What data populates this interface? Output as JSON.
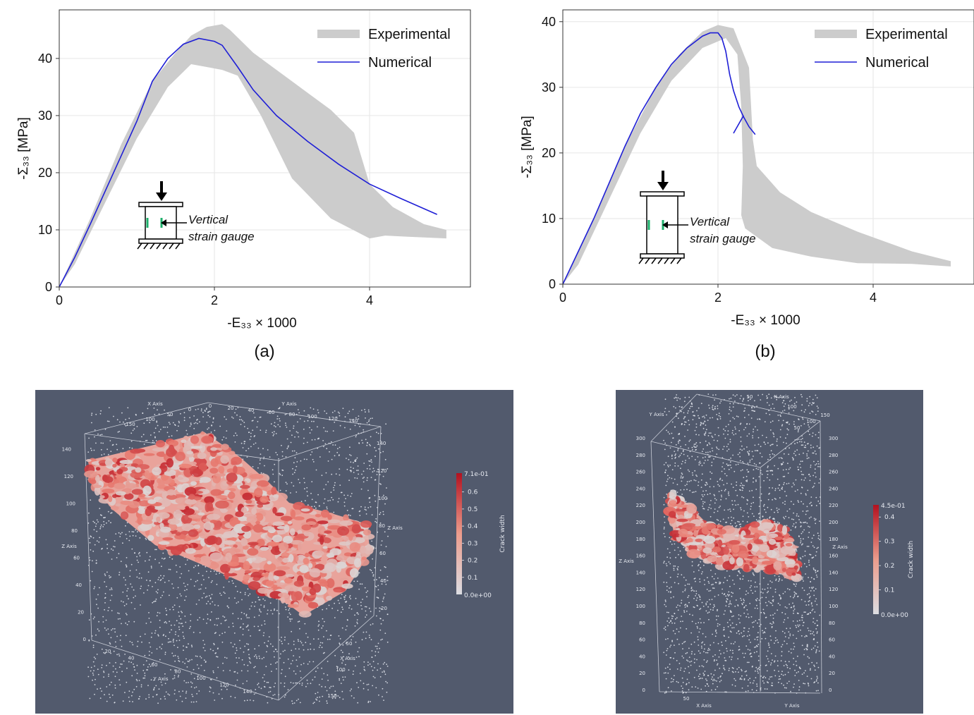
{
  "chart_data": [
    {
      "type": "line",
      "id": "a",
      "caption": "(a)",
      "xlabel": "-E₃₃ × 1000",
      "ylabel": "-Σ₃₃ [MPa]",
      "xlim": [
        0,
        5.3
      ],
      "ylim": [
        0,
        48.5
      ],
      "xticks": [
        0,
        2,
        4
      ],
      "yticks": [
        0,
        10,
        20,
        30,
        40
      ],
      "grid": true,
      "legend_position": "top-right",
      "inset_label": [
        "Vertical",
        "strain gauge"
      ],
      "series": [
        {
          "name": "Experimental",
          "kind": "band",
          "color": "#cccccc",
          "upper": [
            [
              0,
              0
            ],
            [
              0.4,
              12
            ],
            [
              0.8,
              25
            ],
            [
              1.2,
              36
            ],
            [
              1.5,
              41
            ],
            [
              1.7,
              44
            ],
            [
              1.9,
              45.5
            ],
            [
              2.1,
              46
            ],
            [
              2.2,
              45
            ],
            [
              2.5,
              41
            ],
            [
              3.0,
              36
            ],
            [
              3.5,
              31
            ],
            [
              3.8,
              27
            ],
            [
              4.0,
              18
            ],
            [
              4.3,
              14
            ],
            [
              4.7,
              11
            ],
            [
              4.99,
              10
            ]
          ],
          "lower": [
            [
              4.99,
              8.5
            ],
            [
              4.5,
              8.8
            ],
            [
              4.2,
              9
            ],
            [
              4.0,
              8.5
            ],
            [
              3.5,
              12
            ],
            [
              3.0,
              19
            ],
            [
              2.6,
              30
            ],
            [
              2.3,
              37
            ],
            [
              2.1,
              38
            ],
            [
              1.9,
              38.5
            ],
            [
              1.7,
              39
            ],
            [
              1.4,
              35
            ],
            [
              1.0,
              26
            ],
            [
              0.6,
              15
            ],
            [
              0.2,
              4
            ],
            [
              0,
              0
            ]
          ]
        },
        {
          "name": "Numerical",
          "kind": "line",
          "color": "#1f1fd6",
          "points": [
            [
              0,
              0
            ],
            [
              0.2,
              5.2
            ],
            [
              0.4,
              11
            ],
            [
              0.6,
              17
            ],
            [
              0.8,
              23
            ],
            [
              1.0,
              29
            ],
            [
              1.2,
              36
            ],
            [
              1.4,
              40
            ],
            [
              1.6,
              42.5
            ],
            [
              1.8,
              43.5
            ],
            [
              2.0,
              43
            ],
            [
              2.1,
              42.3
            ],
            [
              2.3,
              38.5
            ],
            [
              2.5,
              34.5
            ],
            [
              2.8,
              30
            ],
            [
              3.2,
              25.5
            ],
            [
              3.6,
              21.5
            ],
            [
              4.0,
              18
            ],
            [
              4.4,
              15.5
            ],
            [
              4.87,
              12.7
            ]
          ]
        }
      ]
    },
    {
      "type": "line",
      "id": "b",
      "caption": "(b)",
      "xlabel": "-E₃₃ × 1000",
      "ylabel": "-Σ₃₃ [MPa]",
      "xlim": [
        0,
        5.3
      ],
      "ylim": [
        0,
        41.8
      ],
      "xticks": [
        0,
        2,
        4
      ],
      "yticks": [
        0,
        10,
        20,
        30,
        40
      ],
      "grid": true,
      "legend_position": "top-right",
      "inset_label": [
        "Vertical",
        "strain gauge"
      ],
      "series": [
        {
          "name": "Experimental",
          "kind": "band",
          "color": "#cccccc",
          "upper": [
            [
              0,
              0
            ],
            [
              0.4,
              10
            ],
            [
              0.8,
              21
            ],
            [
              1.2,
              30
            ],
            [
              1.5,
              35
            ],
            [
              1.8,
              38.5
            ],
            [
              2.0,
              39.5
            ],
            [
              2.2,
              39
            ],
            [
              2.3,
              36
            ],
            [
              2.4,
              33
            ],
            [
              2.45,
              22
            ],
            [
              2.5,
              18
            ],
            [
              2.8,
              14
            ],
            [
              3.2,
              11
            ],
            [
              3.8,
              8
            ],
            [
              4.5,
              5
            ],
            [
              5.0,
              3.5
            ]
          ],
          "lower": [
            [
              5.0,
              2.7
            ],
            [
              4.5,
              3.1
            ],
            [
              3.8,
              3.2
            ],
            [
              3.2,
              4.2
            ],
            [
              2.7,
              5.5
            ],
            [
              2.35,
              8.5
            ],
            [
              2.3,
              10.5
            ],
            [
              2.32,
              18
            ],
            [
              2.3,
              27
            ],
            [
              2.25,
              35
            ],
            [
              2.1,
              37.5
            ],
            [
              1.8,
              36
            ],
            [
              1.4,
              31
            ],
            [
              1.0,
              23
            ],
            [
              0.6,
              13
            ],
            [
              0.2,
              3
            ],
            [
              0,
              0
            ]
          ]
        },
        {
          "name": "Numerical",
          "kind": "line",
          "color": "#1f1fd6",
          "points": [
            [
              0,
              0
            ],
            [
              0.2,
              5
            ],
            [
              0.4,
              10
            ],
            [
              0.6,
              15.5
            ],
            [
              0.8,
              21
            ],
            [
              1.0,
              26
            ],
            [
              1.2,
              30
            ],
            [
              1.4,
              33.5
            ],
            [
              1.6,
              36
            ],
            [
              1.8,
              37.8
            ],
            [
              1.9,
              38.3
            ],
            [
              2.0,
              38.3
            ],
            [
              2.05,
              37.5
            ],
            [
              2.1,
              35.5
            ],
            [
              2.15,
              32
            ],
            [
              2.2,
              29.5
            ],
            [
              2.27,
              27
            ],
            [
              2.33,
              25.5
            ],
            [
              2.4,
              24
            ],
            [
              2.48,
              22.8
            ]
          ]
        },
        {
          "name": "",
          "kind": "line",
          "color": "#1f1fd6",
          "points": [
            [
              2.2,
              23
            ],
            [
              2.33,
              25.7
            ]
          ]
        }
      ]
    }
  ],
  "render_a": {
    "background": "#525a6d",
    "x_axis_label": "X Axis",
    "y_axis_label": "Y Axis",
    "z_axis_label": "Z Axis",
    "top_x_ticks": [
      "150",
      "100",
      "50",
      "0"
    ],
    "top_y_ticks": [
      "0",
      "20",
      "40",
      "60",
      "80",
      "100",
      "120",
      "140"
    ],
    "left_z_ticks": [
      "0",
      "20",
      "40",
      "60",
      "80",
      "100",
      "120",
      "140"
    ],
    "right_z_ticks": [
      "20",
      "40",
      "60",
      "80",
      "100",
      "120",
      "140"
    ],
    "bottom_y_ticks": [
      "20",
      "40",
      "60",
      "80",
      "100",
      "120",
      "140"
    ],
    "bottom_x_ticks": [
      "50",
      "100",
      "150"
    ],
    "colorbar": {
      "title": "Crack width",
      "max_label": "7.1e-01",
      "min_label": "0.0e+00",
      "ticks": [
        "0.6",
        "0.5",
        "0.4",
        "0.3",
        "0.2",
        "0.1"
      ]
    }
  },
  "render_b": {
    "background": "#525a6d",
    "x_axis_label": "X Axis",
    "y_axis_label": "Y Axis",
    "z_axis_label": "Z Axis",
    "top_x_ticks": [
      "50",
      "100"
    ],
    "top_y_ticks": [
      "150",
      "100",
      "50"
    ],
    "left_z_ticks": [
      "0",
      "20",
      "40",
      "60",
      "80",
      "100",
      "120",
      "140",
      "160",
      "180",
      "200",
      "220",
      "240",
      "260",
      "280",
      "300"
    ],
    "right_z_ticks": [
      "0",
      "20",
      "40",
      "60",
      "80",
      "100",
      "120",
      "140",
      "160",
      "180",
      "200",
      "220",
      "240",
      "260",
      "280",
      "300"
    ],
    "bottom_x_ticks": [
      "50"
    ],
    "colorbar": {
      "title": "Crack width",
      "max_label": "4.5e-01",
      "min_label": "0.0e+00",
      "ticks": [
        "0.4",
        "0.3",
        "0.2",
        "0.1"
      ]
    }
  }
}
